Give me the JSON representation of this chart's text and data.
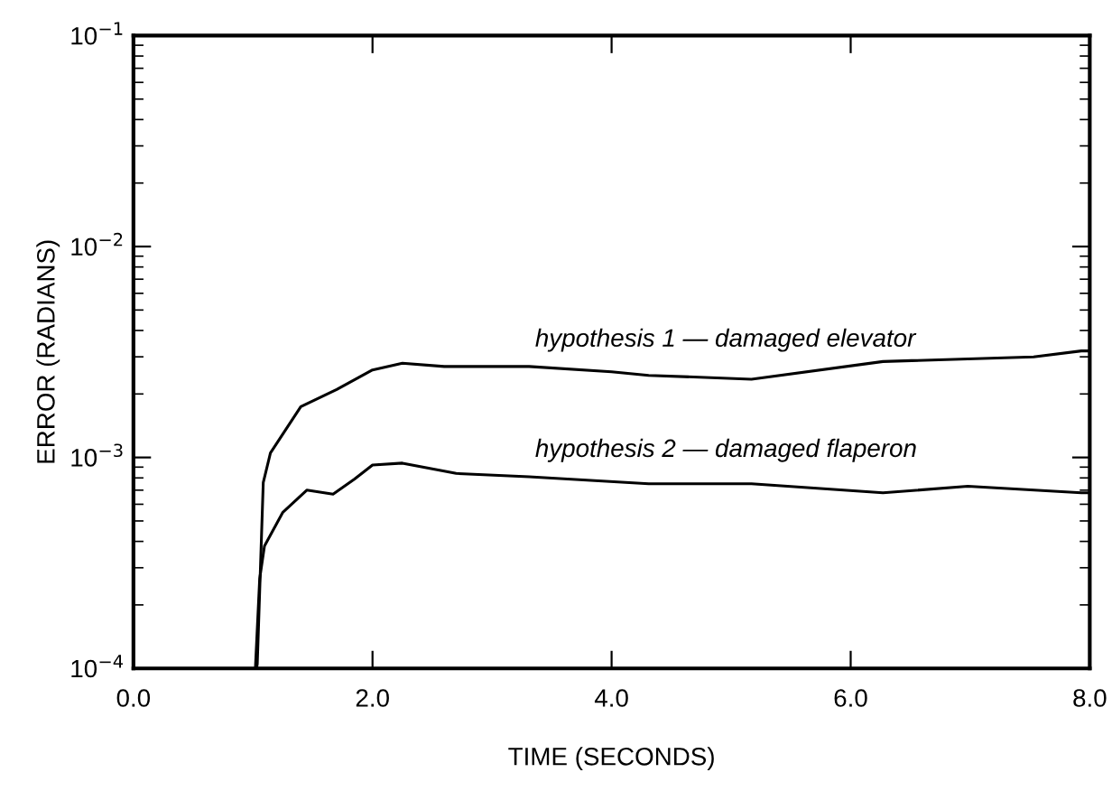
{
  "chart_data": {
    "type": "line",
    "xlabel": "TIME (SECONDS)",
    "ylabel": "ERROR (RADIANS)",
    "log": "y",
    "grid": false,
    "legend": false,
    "marker": "none",
    "line_style": "solid",
    "xlim": [
      0,
      8
    ],
    "xticks": [
      {
        "value": 0,
        "label": "0.0"
      },
      {
        "value": 2,
        "label": "2.0"
      },
      {
        "value": 4,
        "label": "4.0"
      },
      {
        "value": 6,
        "label": "6.0"
      },
      {
        "value": 8,
        "label": "8.0"
      }
    ],
    "ylim": [
      0.0001,
      0.1
    ],
    "yticks": [
      {
        "value": 0.0001,
        "label": "10$^{−4}$"
      },
      {
        "value": 0.001,
        "label": "10$^{−3}$"
      },
      {
        "value": 0.01,
        "label": "10$^{−2}$"
      },
      {
        "value": 0.1,
        "label": "10$^{−1}$"
      }
    ],
    "series": [
      {
        "name": "hypothesis 1 — damaged elevator",
        "color": "#000000",
        "x": [
          1.03,
          1.036,
          1.086,
          1.146,
          1.4,
          1.7,
          2.0,
          2.25,
          2.6,
          3.31,
          4.0,
          4.31,
          5.17,
          6.27,
          7.53,
          7.93,
          8.0
        ],
        "values": [
          0.0001,
          0.000105,
          0.00076,
          0.00105,
          0.00174,
          0.0021,
          0.0026,
          0.0028,
          0.0027,
          0.0027,
          0.00255,
          0.00245,
          0.00235,
          0.00285,
          0.003,
          0.0032,
          0.0032
        ]
      },
      {
        "name": "hypothesis 2 — damaged flaperon",
        "color": "#000000",
        "x": [
          1.02,
          1.056,
          1.096,
          1.25,
          1.45,
          1.67,
          1.85,
          2.0,
          2.25,
          2.7,
          3.31,
          4.31,
          5.17,
          6.27,
          6.98,
          7.93,
          8.0
        ],
        "values": [
          0.0001,
          0.000266,
          0.00038,
          0.00055,
          0.0007,
          0.00067,
          0.00079,
          0.00092,
          0.00094,
          0.00084,
          0.00081,
          0.00075,
          0.00075,
          0.00068,
          0.00073,
          0.00068,
          0.00068
        ]
      }
    ]
  }
}
